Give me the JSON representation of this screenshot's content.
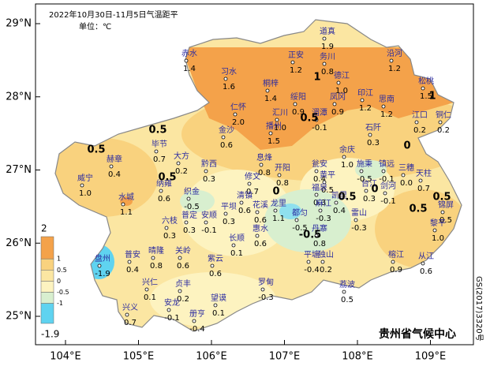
{
  "header": {
    "title": "2022年10月30日-11月5日气温距平",
    "unit": "单位：℃"
  },
  "axes": {
    "yticks": [
      {
        "value": 29,
        "label": "29°N"
      },
      {
        "value": 28,
        "label": "28°N"
      },
      {
        "value": 27,
        "label": "27°N"
      },
      {
        "value": 26,
        "label": "26°N"
      },
      {
        "value": 25,
        "label": "25°N"
      }
    ],
    "xticks": [
      {
        "value": 104,
        "label": "104°E"
      },
      {
        "value": 105,
        "label": "105°E"
      },
      {
        "value": 106,
        "label": "106°E"
      },
      {
        "value": 107,
        "label": "107°E"
      },
      {
        "value": 108,
        "label": "108°E"
      },
      {
        "value": 109,
        "label": "109°E"
      }
    ]
  },
  "legend": {
    "ticks": [
      {
        "value": 2,
        "label": "2"
      },
      {
        "value": 1,
        "label": "1"
      },
      {
        "value": 0.5,
        "label": "0.5"
      },
      {
        "value": 0,
        "label": "0"
      },
      {
        "value": -0.5,
        "label": "-0.5"
      },
      {
        "value": -1,
        "label": "-1"
      },
      {
        "value": -1.9,
        "label": "-1.9"
      }
    ]
  },
  "stations": {
    "names": [
      "道真",
      "赤水",
      "正安",
      "务川",
      "沿河",
      "习水",
      "德江",
      "松桃",
      "桐梓",
      "绥阳",
      "凤冈",
      "思南",
      "印江",
      "湄潭",
      "汇川",
      "江口",
      "铜仁",
      "仁怀",
      "播州",
      "石阡",
      "金沙",
      "毕节",
      "息烽",
      "余庆",
      "开阳",
      "大方",
      "黔西",
      "瓮安",
      "黄平",
      "施秉",
      "镇远",
      "三穗",
      "天柱",
      "赫章",
      "修文",
      "威宁",
      "纳雍",
      "清镇",
      "福泉",
      "凯里",
      "台江",
      "剑河",
      "水城",
      "织金",
      "麻江",
      "龙里",
      "雷山",
      "锦屏",
      "六枝",
      "普定",
      "安顺",
      "平坝",
      "花溪",
      "丹寨",
      "黎平",
      "都匀",
      "长顺",
      "惠水",
      "盘州",
      "晴隆",
      "关岭",
      "紫云",
      "平塘",
      "独山",
      "榕江",
      "从江",
      "罗甸",
      "兴仁",
      "贞丰",
      "荔波",
      "普安",
      "安龙",
      "望谟",
      "兴义",
      "册亨"
    ],
    "values": [
      1.9,
      1.4,
      1.2,
      0.8,
      1.2,
      1.6,
      1.0,
      1.5,
      1.4,
      0.9,
      0.9,
      1.2,
      1.2,
      -0.1,
      1.0,
      0.2,
      0.2,
      2.0,
      1.5,
      0.3,
      0.6,
      0.7,
      0.8,
      1.0,
      0.8,
      0.2,
      0.3,
      0.4,
      0.5,
      -0.5,
      -0.1,
      0.0,
      0.7,
      0.4,
      0.7,
      1.0,
      0.6,
      0.6,
      0.3,
      0.4,
      0.3,
      -0.1,
      1.1,
      -0.5,
      -0.3,
      1.1,
      -0.3,
      0.5,
      0.3,
      0.3,
      -0.1,
      0.3,
      0.6,
      0.8,
      1.0,
      -0.5,
      0.1,
      0.6,
      -1.9,
      0.8,
      0.6,
      0.6,
      -0.4,
      0.2,
      0.9,
      0.6,
      -0.3,
      0.1,
      0.2,
      0.5,
      0.4,
      -0.1,
      0.1,
      0.7,
      -0.4
    ],
    "value_labels": [
      "1.9",
      "1.4",
      "1.2",
      "0.8",
      "1.2",
      "1.6",
      "1.0",
      "1.5",
      "1.4",
      "0.9",
      "0.9",
      "1.2",
      "1.2",
      "-0.1",
      "1.0",
      "0.2",
      "0.2",
      "2.0",
      "1.5",
      "0.3",
      "0.6",
      "0.7",
      "0.8",
      "1.0",
      "0.8",
      "0.2",
      "0.3",
      "0.4",
      "0.5",
      "-0.5",
      "-0.1",
      "0.0",
      "0.7",
      "0.4",
      "0.7",
      "1.0",
      "0.6",
      "0.6",
      "0.3",
      "0.4",
      "0.3",
      "-0.1",
      "1.1",
      "-0.5",
      "-0.3",
      "1.1",
      "-0.3",
      "0.5",
      "0.3",
      "0.3",
      "-0.1",
      "0.3",
      "0.6",
      "0.8",
      "1.0",
      "-0.5",
      "0.1",
      "0.6",
      "-1.9",
      "0.8",
      "0.6",
      "0.6",
      "-0.4",
      "0.2",
      "0.9",
      "0.6",
      "-0.3",
      "0.1",
      "0.2",
      "0.5",
      "0.4",
      "-0.1",
      "0.1",
      "0.7",
      "-0.4"
    ]
  },
  "contour_labels": [
    1,
    1,
    0.5,
    0.5,
    0.5,
    0,
    0,
    0.5,
    -0.5,
    0.5,
    0.5,
    0.5,
    0
  ],
  "footer": {
    "agency": "贵州省气候中心",
    "map_number": "GS(2017)3320号"
  }
}
